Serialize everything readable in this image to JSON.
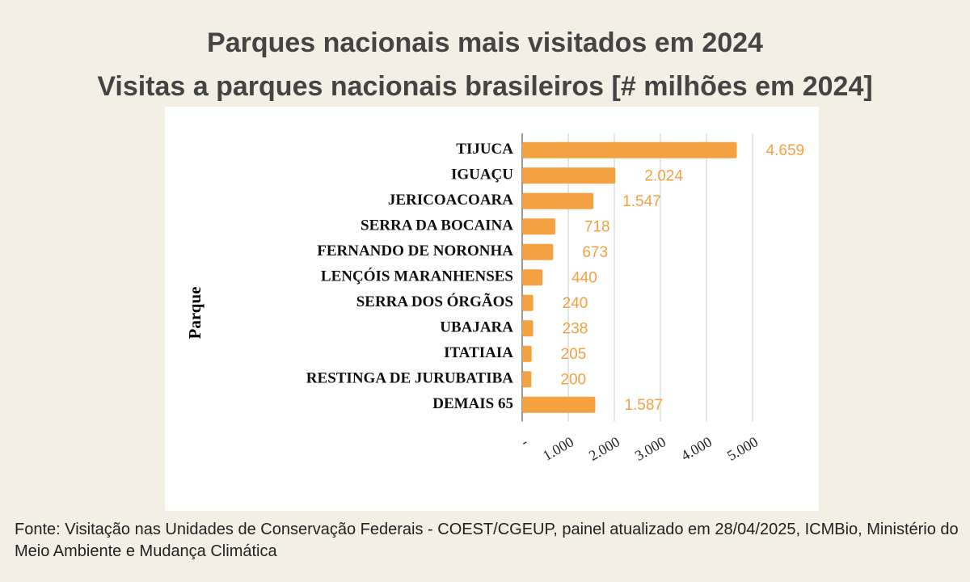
{
  "chart_data": {
    "type": "bar",
    "orientation": "horizontal",
    "title": "Parques nacionais mais visitados em 2024",
    "subtitle": "Visitas a parques nacionais brasileiros [# milhões em 2024]",
    "y_label": "Parque",
    "categories": [
      "TIJUCA",
      "IGUAÇU",
      "JERICOACOARA",
      "SERRA DA BOCAINA",
      "FERNANDO DE NORONHA",
      "LENÇÓIS MARANHENSES",
      "SERRA DOS ÓRGÃOS",
      "UBAJARA",
      "ITATIAIA",
      "RESTINGA DE JURUBATIBA",
      "DEMAIS 65"
    ],
    "values": [
      4659,
      2024,
      1547,
      718,
      673,
      440,
      240,
      238,
      205,
      200,
      1587
    ],
    "value_labels": [
      "4.659",
      "2.024",
      "1.547",
      "718",
      "673",
      "440",
      "240",
      "238",
      "205",
      "200",
      "1.587"
    ],
    "color": "#f4a142",
    "xlim": [
      0,
      5000
    ],
    "xticks": [
      {
        "value": 0,
        "label": "-"
      },
      {
        "value": 1000,
        "label": "1.000"
      },
      {
        "value": 2000,
        "label": "2.000"
      },
      {
        "value": 3000,
        "label": "3.000"
      },
      {
        "value": 4000,
        "label": "4.000"
      },
      {
        "value": 5000,
        "label": "5.000"
      }
    ],
    "grid": true,
    "source": "Fonte: Visitação nas Unidades de Conservação Federais - COEST/CGEUP, painel atualizado em 28/04/2025, ICMBio, Ministério do Meio Ambiente e Mudança Climática"
  }
}
